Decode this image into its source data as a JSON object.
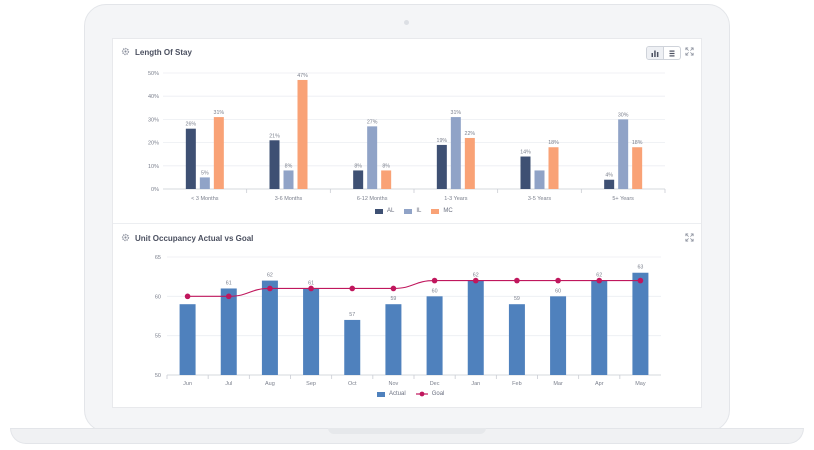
{
  "colors": {
    "al": "#3e5073",
    "il": "#90a3c7",
    "mc": "#f9a276",
    "actual": "#4f81bd",
    "goal": "#c0175d"
  },
  "length_of_stay": {
    "title": "Length Of Stay",
    "legend": [
      "AL",
      "IL",
      "MC"
    ]
  },
  "unit_occupancy": {
    "title": "Unit Occupancy Actual vs Goal",
    "legend": [
      "Actual",
      "Goal"
    ]
  },
  "chart_data": [
    {
      "type": "bar",
      "title": "Length Of Stay",
      "categories": [
        "< 3 Months",
        "3-6 Months",
        "6-12 Months",
        "1-3 Years",
        "3-5 Years",
        "5+ Years"
      ],
      "series": [
        {
          "name": "AL",
          "values": [
            26,
            21,
            8,
            19,
            14,
            4
          ],
          "labels": [
            "26%",
            "21%",
            "8%",
            "19%",
            "14%",
            "4%"
          ]
        },
        {
          "name": "IL",
          "values": [
            5,
            8,
            27,
            31,
            8,
            30
          ],
          "labels": [
            "5%",
            "8%",
            "27%",
            "31%",
            "",
            "30%"
          ]
        },
        {
          "name": "MC",
          "values": [
            31,
            47,
            8,
            22,
            18,
            18
          ],
          "labels": [
            "31%",
            "47%",
            "8%",
            "22%",
            "18%",
            "18%"
          ]
        }
      ],
      "yticks": [
        "0%",
        "10%",
        "20%",
        "30%",
        "40%",
        "50%"
      ],
      "ylim": [
        0,
        50
      ],
      "grid": true,
      "legend_position": "bottom"
    },
    {
      "type": "bar",
      "title": "Unit Occupancy Actual vs Goal",
      "categories": [
        "Jun",
        "Jul",
        "Aug",
        "Sep",
        "Oct",
        "Nov",
        "Dec",
        "Jan",
        "Feb",
        "Mar",
        "Apr",
        "May"
      ],
      "series": [
        {
          "name": "Actual",
          "type": "bar",
          "values": [
            59,
            61,
            62,
            61,
            57,
            59,
            60,
            62,
            59,
            60,
            62,
            63
          ],
          "labels": [
            "",
            "61",
            "62",
            "61",
            "57",
            "59",
            "60",
            "62",
            "59",
            "60",
            "62",
            "63"
          ]
        },
        {
          "name": "Goal",
          "type": "line",
          "values": [
            60,
            60,
            61,
            61,
            61,
            61,
            62,
            62,
            62,
            62,
            62,
            62
          ]
        }
      ],
      "yticks": [
        "50",
        "55",
        "60",
        "65"
      ],
      "ylim": [
        50,
        65
      ],
      "grid": true,
      "legend_position": "bottom"
    }
  ]
}
